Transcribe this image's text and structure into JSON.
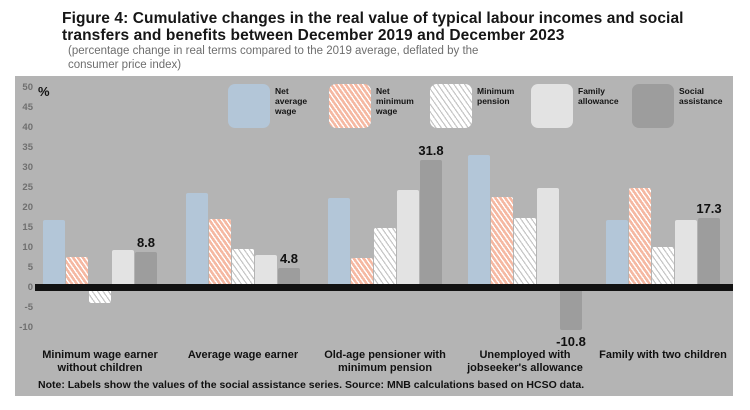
{
  "figure": {
    "title_line1": "Figure 4: Cumulative changes in the real value of typical labour incomes and social",
    "title_line2": "transfers and benefits between December 2019 and December 2023",
    "subtitle_line1": "(percentage change in real terms compared to the 2019 average, deflated by the",
    "subtitle_line2": "consumer price index)",
    "unit_label": "%",
    "footer_note": "Note: Labels show the values of the social assistance series. Source: MNB calculations based on HCSO data."
  },
  "chart_data": {
    "type": "bar",
    "title": "Cumulative changes in the real value of typical labour incomes and social transfers and benefits between December 2019 and December 2023",
    "xlabel": "",
    "ylabel": "%",
    "ylim": [
      -10,
      50
    ],
    "yticks": [
      -10,
      -5,
      0,
      5,
      10,
      15,
      20,
      25,
      30,
      35,
      40,
      45,
      50
    ],
    "grid": false,
    "legend_position": "top",
    "plot_background": "#b4b4b4",
    "categories": [
      "Minimum wage earner without children",
      "Average wage earner",
      "Old-age pensioner with minimum pension",
      "Unemployed with jobseeker's allowance",
      "Family with two children"
    ],
    "series": [
      {
        "name": "Net average wage",
        "color": "#b3c6d8",
        "pattern": "solid",
        "values": [
          16.8,
          23.5,
          22.3,
          33.0,
          16.8
        ]
      },
      {
        "name": "Net minimum wage",
        "color": "#f5c0ae",
        "pattern": "hatch-salmon",
        "values": [
          7.5,
          17.0,
          7.3,
          22.5,
          24.8
        ]
      },
      {
        "name": "Minimum pension",
        "color": "#ffffff",
        "pattern": "hatch-white",
        "values": [
          -4.0,
          9.5,
          14.8,
          17.3,
          10.0
        ]
      },
      {
        "name": "Family allowance",
        "color": "#e3e3e3",
        "pattern": "solid",
        "values": [
          9.3,
          8.0,
          24.3,
          24.8,
          16.8
        ]
      },
      {
        "name": "Social assistance",
        "color": "#9d9d9d",
        "pattern": "solid",
        "values": [
          8.8,
          4.8,
          31.8,
          -10.8,
          17.3
        ]
      }
    ],
    "value_labels": {
      "series": "Social assistance",
      "values": [
        "8.8",
        "4.8",
        "31.8",
        "-10.8",
        "17.3"
      ]
    }
  }
}
